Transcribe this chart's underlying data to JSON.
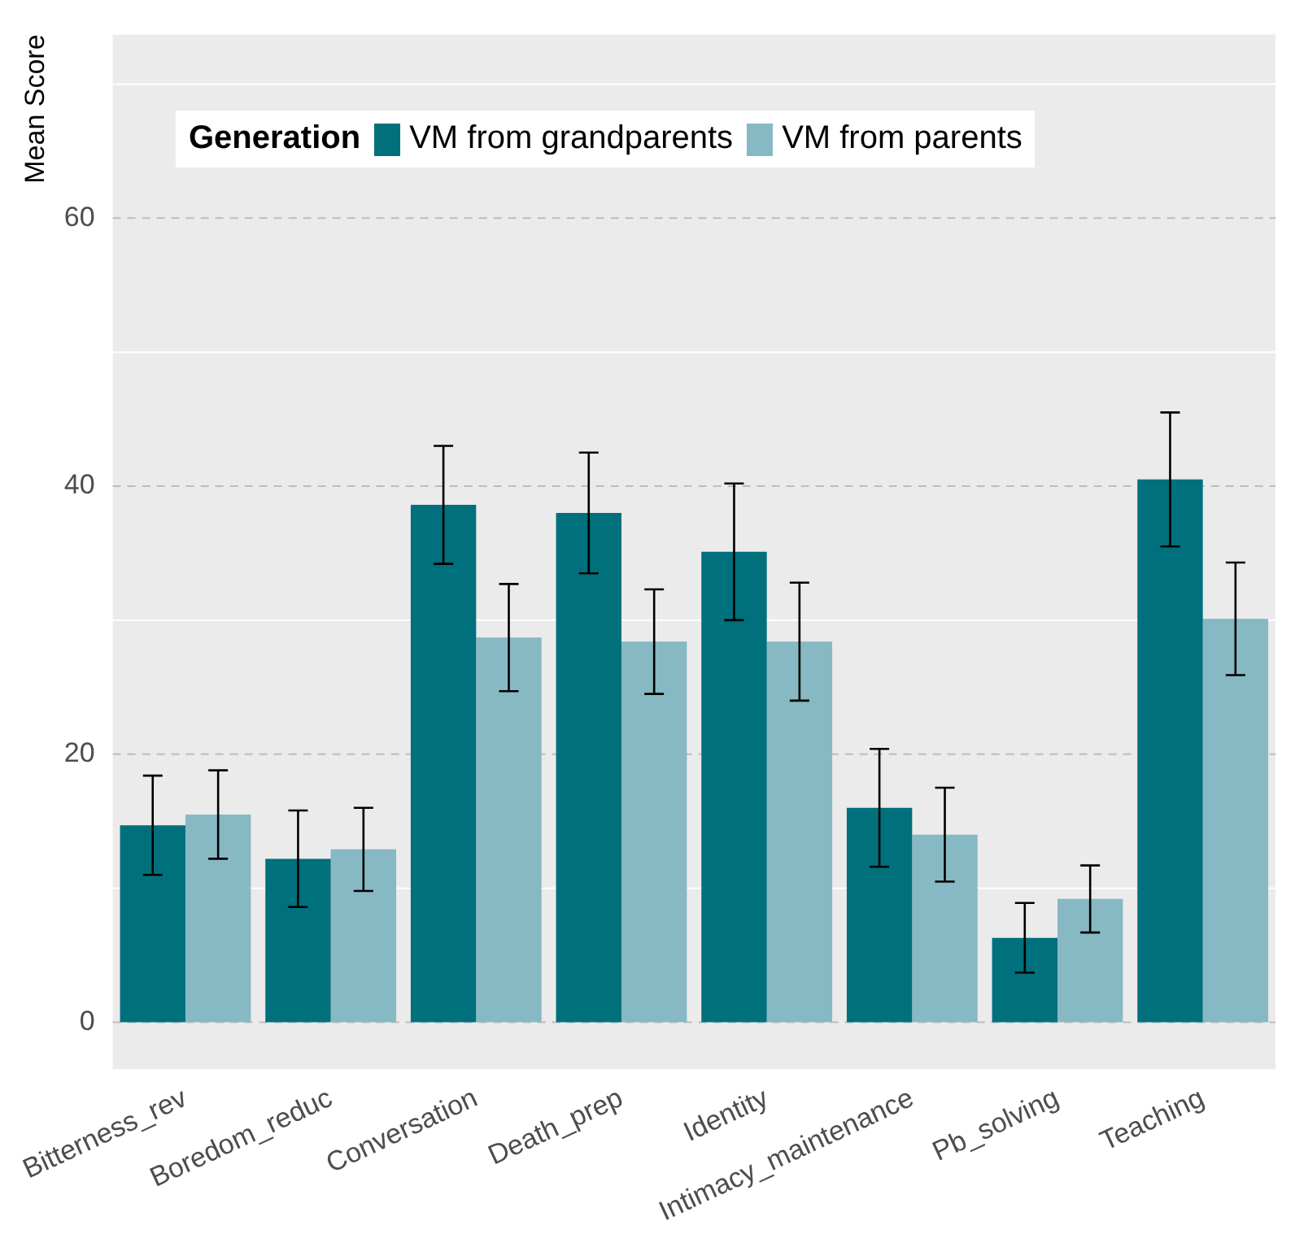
{
  "chart_data": {
    "type": "bar",
    "ylabel": "Mean Score",
    "legend_title": "Generation",
    "categories": [
      "Bitterness_rev",
      "Boredom_reduc",
      "Conversation",
      "Death_prep",
      "Identity",
      "Intimacy_maintenance",
      "Pb_solving",
      "Teaching"
    ],
    "series": [
      {
        "name": "VM from grandparents",
        "color": "#00707c",
        "values": [
          14.7,
          12.2,
          38.6,
          38.0,
          35.1,
          16.0,
          6.3,
          40.5
        ],
        "errors": [
          3.7,
          3.6,
          4.4,
          4.5,
          5.1,
          4.4,
          2.6,
          5.0
        ]
      },
      {
        "name": "VM from parents",
        "color": "#86b9c3",
        "values": [
          15.5,
          12.9,
          28.7,
          28.4,
          28.4,
          14.0,
          9.2,
          30.1
        ],
        "errors": [
          3.3,
          3.1,
          4.0,
          3.9,
          4.4,
          3.5,
          2.5,
          4.2
        ]
      }
    ],
    "ylim": [
      -3.5,
      73.7
    ],
    "yticks": [
      0,
      20,
      40,
      60
    ],
    "grid": "y",
    "legend": "top left"
  }
}
